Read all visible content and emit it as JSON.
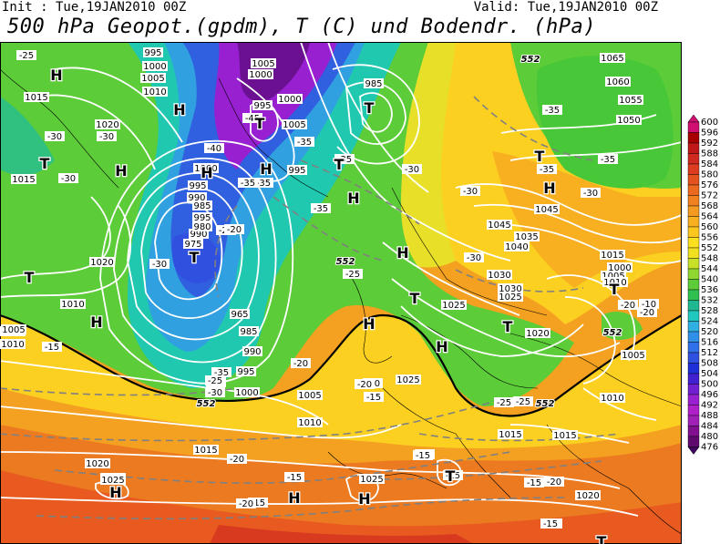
{
  "header": {
    "init": "Init : Tue,19JAN2010 00Z",
    "valid": "Valid: Tue,19JAN2010 00Z",
    "title": "500 hPa Geopot.(gpdm), T (C) und Bodendr. (hPa)"
  },
  "colorbar": {
    "levels": [
      "600",
      "596",
      "592",
      "588",
      "584",
      "580",
      "576",
      "572",
      "568",
      "564",
      "560",
      "556",
      "552",
      "548",
      "544",
      "540",
      "536",
      "532",
      "528",
      "524",
      "520",
      "516",
      "512",
      "508",
      "504",
      "500",
      "496",
      "492",
      "488",
      "484",
      "480",
      "476"
    ],
    "colors": [
      "#d01070",
      "#a80000",
      "#c01818",
      "#d02a20",
      "#dc3c20",
      "#e45220",
      "#ec6a20",
      "#f08020",
      "#f49a20",
      "#f8b020",
      "#fcc820",
      "#fce020",
      "#f0e020",
      "#c8e028",
      "#90d830",
      "#5ccc38",
      "#30c050",
      "#20b890",
      "#20c8c0",
      "#30b0e0",
      "#3090e8",
      "#3070e8",
      "#3050e0",
      "#2030d8",
      "#4020d0",
      "#7020d0",
      "#9820d0",
      "#b020c8",
      "#a020b8",
      "#801090",
      "#600a70"
    ]
  },
  "map_labels": {
    "pressure": [
      "995",
      "1000",
      "1005",
      "1010",
      "1015",
      "1020",
      "1005",
      "1000",
      "995",
      "1005",
      "995",
      "985",
      "1000",
      "990",
      "995",
      "1000",
      "995",
      "985",
      "990",
      "980",
      "975",
      "965",
      "985",
      "990",
      "995",
      "1000",
      "1005",
      "1010",
      "1015",
      "1020",
      "1025",
      "1015",
      "1010",
      "1005",
      "1000",
      "1005",
      "1010",
      "1015",
      "1020",
      "1025",
      "1030",
      "1035",
      "1040",
      "1045",
      "1045",
      "1050",
      "1055",
      "1060",
      "1065",
      "1030",
      "1025",
      "1020",
      "1015",
      "1010",
      "1010",
      "1025",
      "1020",
      "1015",
      "1010",
      "1005",
      "1020",
      "1025"
    ],
    "temperature": [
      "-25",
      "-30",
      "-30",
      "-30",
      "-35",
      "-40",
      "-45",
      "-35",
      "-35",
      "-30",
      "-35",
      "-35",
      "-30",
      "-25",
      "-20",
      "-30",
      "-35",
      "-35",
      "-35",
      "-30",
      "-25",
      "-25",
      "-20",
      "-30",
      "-25",
      "-35",
      "-35",
      "-30",
      "-25",
      "-20",
      "-20",
      "-20",
      "-15",
      "-15",
      "-15",
      "-15",
      "-15",
      "-20",
      "-15",
      "-20",
      "-15",
      "-20",
      "-15",
      "-10",
      "-20",
      "-20",
      "-15"
    ],
    "highs": [
      "H",
      "H",
      "H",
      "H",
      "H",
      "H",
      "H",
      "H",
      "H",
      "H",
      "H",
      "H",
      "H",
      "H"
    ],
    "lows": [
      "T",
      "T",
      "T",
      "T",
      "T",
      "T",
      "T",
      "T",
      "T",
      "T",
      "T",
      "T"
    ],
    "contour_552": [
      "552",
      "552",
      "552",
      "552",
      "552"
    ]
  }
}
